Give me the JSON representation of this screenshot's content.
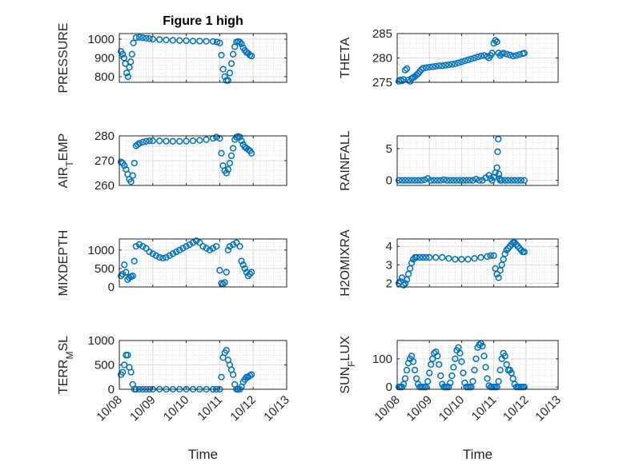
{
  "chart_data": [
    {
      "type": "scatter",
      "title": "Figure 1 high",
      "ylabel": "PRESSURE",
      "xlabel": "",
      "xlim": [
        "10/08",
        "10/13"
      ],
      "xticks": [
        "10/08",
        "10/09",
        "10/10",
        "10/11",
        "10/12",
        "10/13"
      ],
      "ylim": [
        770,
        1030
      ],
      "yticks": [
        800,
        900,
        1000
      ],
      "grid": true,
      "marker_color": "#0072BD",
      "x": [
        8.05,
        8.1,
        8.14,
        8.18,
        8.22,
        8.26,
        8.3,
        8.34,
        8.38,
        8.42,
        8.5,
        8.6,
        8.7,
        8.8,
        8.9,
        9.0,
        9.2,
        9.4,
        9.6,
        9.8,
        10.0,
        10.2,
        10.4,
        10.6,
        10.8,
        10.92,
        11.0,
        11.05,
        11.1,
        11.15,
        11.2,
        11.25,
        11.3,
        11.35,
        11.4,
        11.45,
        11.5,
        11.55,
        11.6,
        11.65,
        11.7,
        11.75,
        11.8,
        11.85,
        11.9,
        11.95
      ],
      "y": [
        935,
        920,
        900,
        870,
        820,
        800,
        850,
        880,
        920,
        980,
        1008,
        1010,
        1008,
        1005,
        1003,
        1000,
        998,
        996,
        994,
        993,
        992,
        990,
        990,
        989,
        988,
        985,
        980,
        915,
        840,
        800,
        780,
        780,
        820,
        870,
        920,
        960,
        985,
        988,
        985,
        975,
        955,
        940,
        930,
        925,
        915,
        910
      ]
    },
    {
      "type": "scatter",
      "title": "",
      "ylabel": "THETA",
      "xlabel": "",
      "xlim": [
        "10/08",
        "10/13"
      ],
      "xticks": [
        "10/08",
        "10/09",
        "10/10",
        "10/11",
        "10/12",
        "10/13"
      ],
      "ylim": [
        275,
        285
      ],
      "yticks": [
        275,
        280,
        285
      ],
      "grid": true,
      "marker_color": "#0072BD",
      "x": [
        8.05,
        8.1,
        8.15,
        8.2,
        8.25,
        8.3,
        8.35,
        8.4,
        8.45,
        8.5,
        8.55,
        8.6,
        8.65,
        8.7,
        8.75,
        8.8,
        8.9,
        9.0,
        9.1,
        9.2,
        9.3,
        9.4,
        9.5,
        9.6,
        9.7,
        9.8,
        9.9,
        10.0,
        10.1,
        10.2,
        10.3,
        10.4,
        10.5,
        10.6,
        10.7,
        10.8,
        10.85,
        10.9,
        10.95,
        11.0,
        11.05,
        11.1,
        11.15,
        11.2,
        11.25,
        11.3,
        11.4,
        11.5,
        11.6,
        11.7,
        11.8,
        11.9,
        11.95
      ],
      "y": [
        275.2,
        275.5,
        275.3,
        275.6,
        277.5,
        277.8,
        275.5,
        275.2,
        275.8,
        276.0,
        276.2,
        276.5,
        276.8,
        277.2,
        277.6,
        277.9,
        278.0,
        278.1,
        278.2,
        278.3,
        278.4,
        278.4,
        278.5,
        278.6,
        278.7,
        278.8,
        279.0,
        279.2,
        279.4,
        279.6,
        279.8,
        280.0,
        280.2,
        280.4,
        280.5,
        280.3,
        280.0,
        280.5,
        281.0,
        283.0,
        283.6,
        283.3,
        281.0,
        280.5,
        280.8,
        281.0,
        280.8,
        280.6,
        280.4,
        280.5,
        280.7,
        280.9,
        281.0
      ]
    },
    {
      "type": "scatter",
      "title": "",
      "ylabel": "AIR_TEMP",
      "ylabel_parts": [
        "AIR",
        "T",
        "EMP"
      ],
      "xlabel": "",
      "xlim": [
        "10/08",
        "10/13"
      ],
      "xticks": [
        "10/08",
        "10/09",
        "10/10",
        "10/11",
        "10/12",
        "10/13"
      ],
      "ylim": [
        260,
        280
      ],
      "yticks": [
        260,
        270,
        280
      ],
      "grid": true,
      "marker_color": "#0072BD",
      "x": [
        8.05,
        8.1,
        8.15,
        8.2,
        8.25,
        8.3,
        8.35,
        8.4,
        8.45,
        8.5,
        8.55,
        8.6,
        8.7,
        8.8,
        8.9,
        9.0,
        9.2,
        9.4,
        9.6,
        9.8,
        10.0,
        10.2,
        10.4,
        10.6,
        10.8,
        10.9,
        11.0,
        11.05,
        11.1,
        11.15,
        11.2,
        11.25,
        11.3,
        11.35,
        11.4,
        11.45,
        11.5,
        11.55,
        11.6,
        11.65,
        11.7,
        11.75,
        11.8,
        11.85,
        11.9,
        11.95
      ],
      "y": [
        269.5,
        269.0,
        268.0,
        266.5,
        264.5,
        262.5,
        261.5,
        264.0,
        269.0,
        276.0,
        276.5,
        277.0,
        277.5,
        277.8,
        278.0,
        278.0,
        278.0,
        277.9,
        277.8,
        277.8,
        277.9,
        278.0,
        278.2,
        278.5,
        279.0,
        279.5,
        279.0,
        273.0,
        268.0,
        266.0,
        265.0,
        266.5,
        269.0,
        272.0,
        275.0,
        278.5,
        279.5,
        279.8,
        279.5,
        278.0,
        276.5,
        275.5,
        275.0,
        274.5,
        274.0,
        273.0
      ]
    },
    {
      "type": "scatter",
      "title": "",
      "ylabel": "RAINFALL",
      "xlabel": "",
      "xlim": [
        "10/08",
        "10/13"
      ],
      "xticks": [
        "10/08",
        "10/09",
        "10/10",
        "10/11",
        "10/12",
        "10/13"
      ],
      "ylim": [
        -0.8,
        7
      ],
      "yticks": [
        0,
        5
      ],
      "grid": true,
      "marker_color": "#0072BD",
      "x": [
        8.05,
        8.15,
        8.25,
        8.35,
        8.45,
        8.55,
        8.65,
        8.75,
        8.85,
        8.95,
        9.05,
        9.15,
        9.25,
        9.35,
        9.45,
        9.55,
        9.65,
        9.75,
        9.85,
        9.95,
        10.05,
        10.15,
        10.25,
        10.35,
        10.45,
        10.55,
        10.65,
        10.75,
        10.85,
        10.9,
        10.95,
        11.0,
        11.05,
        11.1,
        11.12,
        11.14,
        11.16,
        11.18,
        11.2,
        11.25,
        11.35,
        11.45,
        11.55,
        11.65,
        11.75,
        11.85,
        11.95
      ],
      "y": [
        0,
        0,
        0,
        0,
        0,
        0,
        0,
        0,
        0.1,
        0.3,
        0,
        0,
        0,
        0,
        0.1,
        0,
        0,
        0,
        0,
        0,
        0,
        0,
        0,
        0,
        0.2,
        0,
        0,
        0.4,
        0.8,
        0.3,
        0,
        0.5,
        1.2,
        2.0,
        4.5,
        6.5,
        1.0,
        0.3,
        0,
        0,
        0,
        0,
        0,
        0,
        0,
        0,
        0
      ]
    },
    {
      "type": "scatter",
      "title": "",
      "ylabel": "MIXDEPTH",
      "xlabel": "",
      "xlim": [
        "10/08",
        "10/13"
      ],
      "xticks": [
        "10/08",
        "10/09",
        "10/10",
        "10/11",
        "10/12",
        "10/13"
      ],
      "ylim": [
        0,
        1300
      ],
      "yticks": [
        0,
        500,
        1000
      ],
      "grid": true,
      "marker_color": "#0072BD",
      "x": [
        8.05,
        8.1,
        8.15,
        8.2,
        8.25,
        8.3,
        8.35,
        8.4,
        8.45,
        8.5,
        8.6,
        8.7,
        8.8,
        8.9,
        9.0,
        9.1,
        9.2,
        9.3,
        9.4,
        9.5,
        9.6,
        9.7,
        9.8,
        9.9,
        10.0,
        10.1,
        10.2,
        10.3,
        10.4,
        10.5,
        10.6,
        10.7,
        10.8,
        10.9,
        11.0,
        11.05,
        11.1,
        11.15,
        11.2,
        11.25,
        11.3,
        11.4,
        11.5,
        11.6,
        11.65,
        11.7,
        11.75,
        11.8,
        11.85,
        11.9,
        11.95
      ],
      "y": [
        300,
        350,
        600,
        400,
        200,
        250,
        280,
        300,
        700,
        1100,
        1150,
        1100,
        1050,
        950,
        900,
        850,
        800,
        780,
        800,
        850,
        900,
        950,
        1000,
        1050,
        1100,
        1150,
        1200,
        1250,
        1200,
        1100,
        1050,
        1000,
        1050,
        1100,
        450,
        100,
        80,
        120,
        400,
        1000,
        1100,
        1150,
        1200,
        1100,
        700,
        600,
        500,
        400,
        300,
        350,
        400
      ]
    },
    {
      "type": "scatter",
      "title": "",
      "ylabel": "H2OMIXRA",
      "xlabel": "",
      "xlim": [
        "10/08",
        "10/13"
      ],
      "xticks": [
        "10/08",
        "10/09",
        "10/10",
        "10/11",
        "10/12",
        "10/13"
      ],
      "ylim": [
        1.8,
        4.4
      ],
      "yticks": [
        2,
        3,
        4
      ],
      "grid": true,
      "marker_color": "#0072BD",
      "x": [
        8.05,
        8.1,
        8.15,
        8.2,
        8.25,
        8.3,
        8.35,
        8.4,
        8.45,
        8.5,
        8.55,
        8.6,
        8.7,
        8.8,
        8.9,
        9.0,
        9.2,
        9.4,
        9.6,
        9.8,
        10.0,
        10.2,
        10.4,
        10.6,
        10.8,
        10.9,
        11.0,
        11.05,
        11.1,
        11.15,
        11.2,
        11.25,
        11.3,
        11.35,
        11.4,
        11.45,
        11.5,
        11.55,
        11.6,
        11.65,
        11.7,
        11.75,
        11.8,
        11.85,
        11.9,
        11.95
      ],
      "y": [
        2.0,
        2.1,
        2.3,
        1.9,
        2.0,
        2.2,
        2.5,
        2.8,
        3.1,
        3.3,
        3.4,
        3.4,
        3.4,
        3.4,
        3.4,
        3.4,
        3.4,
        3.4,
        3.35,
        3.3,
        3.3,
        3.3,
        3.35,
        3.4,
        3.45,
        3.5,
        3.5,
        2.8,
        2.5,
        2.3,
        2.7,
        3.0,
        3.3,
        3.6,
        3.8,
        3.9,
        4.0,
        4.1,
        4.2,
        4.2,
        4.1,
        4.0,
        3.9,
        3.8,
        3.7,
        3.7
      ]
    },
    {
      "type": "scatter",
      "title": "",
      "ylabel": "TERR_MSL",
      "ylabel_parts": [
        "TERR",
        "M",
        "SL"
      ],
      "xlabel": "Time",
      "xlim": [
        "10/08",
        "10/13"
      ],
      "xticks": [
        "10/08",
        "10/09",
        "10/10",
        "10/11",
        "10/12",
        "10/13"
      ],
      "ylim": [
        0,
        1000
      ],
      "yticks": [
        0,
        500,
        1000
      ],
      "grid": true,
      "marker_color": "#0072BD",
      "x": [
        8.05,
        8.1,
        8.15,
        8.2,
        8.25,
        8.3,
        8.35,
        8.4,
        8.45,
        8.5,
        8.6,
        8.7,
        8.8,
        8.9,
        9.0,
        9.2,
        9.4,
        9.6,
        9.8,
        10.0,
        10.2,
        10.4,
        10.6,
        10.8,
        10.9,
        11.0,
        11.05,
        11.1,
        11.15,
        11.2,
        11.25,
        11.3,
        11.35,
        11.4,
        11.45,
        11.5,
        11.55,
        11.6,
        11.65,
        11.7,
        11.75,
        11.8,
        11.85,
        11.9,
        11.95
      ],
      "y": [
        300,
        350,
        500,
        700,
        700,
        450,
        350,
        100,
        0,
        0,
        0,
        0,
        0,
        0,
        0,
        0,
        0,
        0,
        0,
        0,
        0,
        0,
        0,
        0,
        0,
        0,
        250,
        650,
        750,
        800,
        600,
        500,
        400,
        300,
        100,
        0,
        0,
        0,
        50,
        150,
        200,
        250,
        250,
        280,
        300
      ]
    },
    {
      "type": "scatter",
      "title": "",
      "ylabel": "SUN_FLUX",
      "ylabel_parts": [
        "SUN",
        "F",
        "LUX"
      ],
      "xlabel": "Time",
      "xlim": [
        "10/08",
        "10/13"
      ],
      "xticks": [
        "10/08",
        "10/09",
        "10/10",
        "10/11",
        "10/12",
        "10/13"
      ],
      "ylim": [
        -8,
        165
      ],
      "yticks": [
        0,
        100
      ],
      "grid": true,
      "marker_color": "#0072BD",
      "x": [
        8.05,
        8.1,
        8.15,
        8.2,
        8.25,
        8.3,
        8.35,
        8.4,
        8.45,
        8.5,
        8.55,
        8.6,
        8.65,
        8.7,
        8.75,
        8.8,
        8.85,
        8.9,
        8.95,
        9.0,
        9.05,
        9.1,
        9.15,
        9.2,
        9.25,
        9.3,
        9.35,
        9.4,
        9.45,
        9.5,
        9.55,
        9.6,
        9.65,
        9.7,
        9.75,
        9.8,
        9.85,
        9.9,
        9.95,
        10.0,
        10.05,
        10.1,
        10.15,
        10.2,
        10.25,
        10.3,
        10.35,
        10.4,
        10.45,
        10.5,
        10.55,
        10.6,
        10.65,
        10.7,
        10.75,
        10.8,
        10.85,
        10.9,
        10.95,
        11.0,
        11.05,
        11.1,
        11.15,
        11.2,
        11.25,
        11.3,
        11.35,
        11.4,
        11.45,
        11.5,
        11.55,
        11.6,
        11.65,
        11.7,
        11.75,
        11.8,
        11.85,
        11.9,
        11.95
      ],
      "y": [
        0,
        0,
        0,
        10,
        30,
        60,
        85,
        100,
        110,
        90,
        60,
        30,
        10,
        0,
        0,
        0,
        0,
        0,
        20,
        50,
        80,
        100,
        120,
        125,
        110,
        80,
        40,
        10,
        0,
        0,
        0,
        0,
        15,
        40,
        70,
        100,
        130,
        140,
        120,
        90,
        50,
        15,
        0,
        0,
        0,
        0,
        20,
        60,
        100,
        140,
        150,
        155,
        145,
        110,
        70,
        30,
        5,
        0,
        0,
        0,
        0,
        0,
        20,
        60,
        100,
        120,
        110,
        80,
        60,
        60,
        50,
        30,
        10,
        0,
        0,
        0,
        0,
        0,
        0
      ]
    }
  ]
}
